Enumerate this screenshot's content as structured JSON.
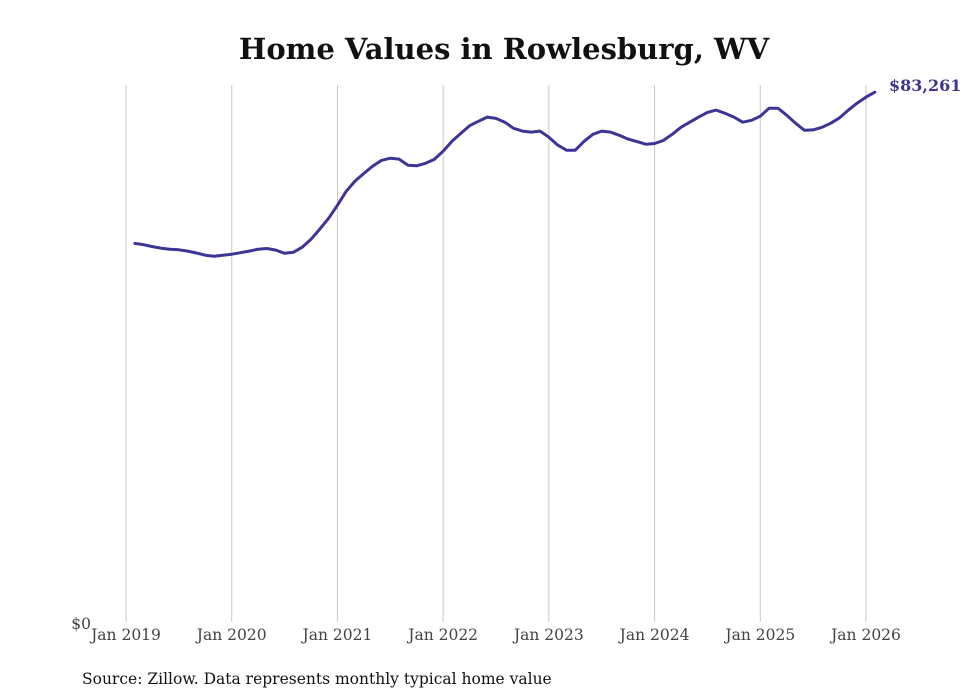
{
  "chart_data": {
    "type": "line",
    "title": "Home Values in Rowlesburg, WV",
    "xlabel": "",
    "ylabel": "",
    "source": "Source: Zillow. Data represents monthly typical home value",
    "x_ticks": [
      "Jan 2019",
      "Jan 2020",
      "Jan 2021",
      "Jan 2022",
      "Jan 2023",
      "Jan 2024",
      "Jan 2025",
      "Jan 2026"
    ],
    "y_ticks": [
      "$0"
    ],
    "ylim": [
      0,
      84400
    ],
    "grid": "vertical",
    "start_month": "Feb 2019",
    "end_label": "$83,261",
    "colors": {
      "line": "#3d3596",
      "grid": "#c8c8c8"
    },
    "series": [
      {
        "name": "Typical home value",
        "monthly_from_feb_2019": [
          59500,
          59300,
          59000,
          58750,
          58600,
          58500,
          58300,
          58000,
          57650,
          57500,
          57650,
          57800,
          58050,
          58300,
          58600,
          58700,
          58450,
          57950,
          58100,
          58900,
          60150,
          61750,
          63450,
          65500,
          67700,
          69300,
          70500,
          71650,
          72550,
          72900,
          72750,
          71800,
          71700,
          72100,
          72700,
          74000,
          75550,
          76800,
          78000,
          78700,
          79350,
          79150,
          78550,
          77600,
          77150,
          77000,
          77150,
          76200,
          74950,
          74150,
          74150,
          75550,
          76650,
          77150,
          77000,
          76500,
          75900,
          75500,
          75100,
          75200,
          75700,
          76650,
          77750,
          78550,
          79350,
          80100,
          80450,
          79950,
          79350,
          78550,
          78850,
          79500,
          80750,
          80750,
          79650,
          78400,
          77300,
          77350,
          77750,
          78400,
          79250,
          80450,
          81550,
          82500,
          83261
        ]
      }
    ]
  }
}
